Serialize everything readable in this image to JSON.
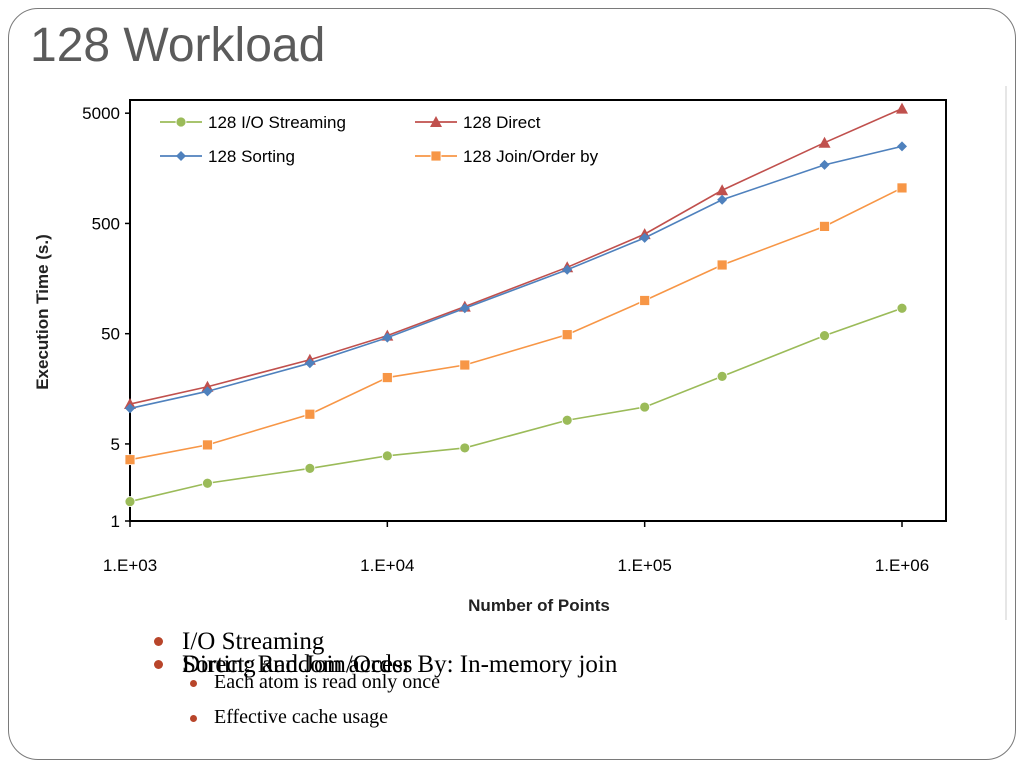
{
  "slide": {
    "title": "128 Workload",
    "bullets": [
      {
        "text": "I/O Streaming",
        "level": 1
      },
      {
        "text": "Each atom is read only once",
        "level": 2
      },
      {
        "text": "Effective cache usage",
        "level": 2
      },
      {
        "text": "Sorting and Join/Order By: In-memory join",
        "level": 1
      },
      {
        "text": "Direct: Random access",
        "level": 1
      }
    ]
  },
  "chart_data": {
    "type": "line",
    "xlabel": "Number of Points",
    "ylabel": "Execution Time (s.)",
    "xscale": "log",
    "yscale": "log",
    "xlim": [
      1000,
      1000000
    ],
    "ylim": [
      1,
      10000
    ],
    "x_ticks": [
      1000,
      10000,
      100000,
      1000000
    ],
    "x_tick_labels": [
      "1.E+03",
      "1.E+04",
      "1.E+05",
      "1.E+06"
    ],
    "y_ticks": [
      1,
      5,
      50,
      500,
      5000
    ],
    "y_tick_labels": [
      "1",
      "5",
      "50",
      "500",
      "5000"
    ],
    "legend_position": "top-left",
    "grid": false,
    "x": [
      1000,
      2000,
      5000,
      10000,
      20000,
      50000,
      100000,
      200000,
      500000,
      1000000
    ],
    "series": [
      {
        "name": "128 I/O Streaming",
        "color": "#9bbb59",
        "marker": "circle",
        "values": [
          1.5,
          2.2,
          3.0,
          3.9,
          4.6,
          8.2,
          10.8,
          20.5,
          48,
          85
        ]
      },
      {
        "name": "128 Direct",
        "color": "#c0504d",
        "marker": "triangle",
        "values": [
          11.5,
          16.5,
          29,
          48,
          88,
          200,
          400,
          1000,
          2700,
          5500
        ]
      },
      {
        "name": "128 Sorting",
        "color": "#4f81bd",
        "marker": "diamond",
        "values": [
          10.5,
          15,
          27,
          46,
          85,
          190,
          370,
          820,
          1700,
          2500
        ]
      },
      {
        "name": "128 Join/Order by",
        "color": "#f79646",
        "marker": "square",
        "values": [
          3.6,
          4.9,
          9.3,
          20,
          26,
          49,
          100,
          210,
          470,
          1050
        ]
      }
    ]
  }
}
